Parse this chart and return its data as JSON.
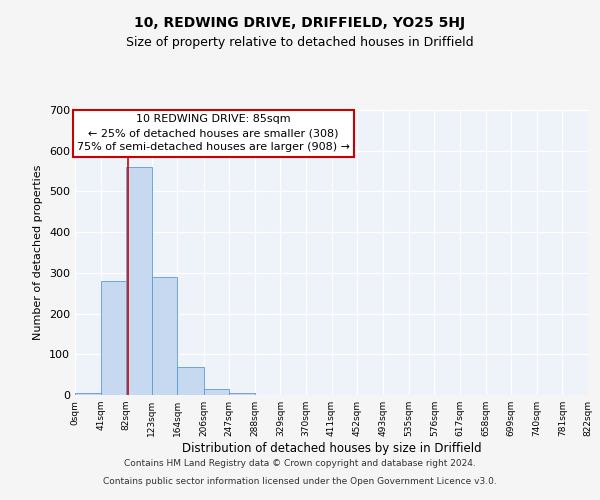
{
  "title": "10, REDWING DRIVE, DRIFFIELD, YO25 5HJ",
  "subtitle": "Size of property relative to detached houses in Driffield",
  "xlabel": "Distribution of detached houses by size in Driffield",
  "ylabel": "Number of detached properties",
  "bin_edges": [
    0,
    41,
    82,
    123,
    164,
    206,
    247,
    288,
    329,
    370,
    411,
    452,
    493,
    535,
    576,
    617,
    658,
    699,
    740,
    781,
    822
  ],
  "bin_counts": [
    5,
    280,
    560,
    290,
    68,
    15,
    5,
    0,
    0,
    0,
    0,
    0,
    0,
    0,
    0,
    0,
    0,
    0,
    0,
    0
  ],
  "bar_color": "#c6d9f0",
  "bar_edge_color": "#5b9bd5",
  "property_line_x": 85,
  "property_line_color": "#cc0000",
  "annotation_line1": "10 REDWING DRIVE: 85sqm",
  "annotation_line2": "← 25% of detached houses are smaller (308)",
  "annotation_line3": "75% of semi-detached houses are larger (908) →",
  "annotation_box_color": "#ffffff",
  "annotation_box_edge_color": "#cc0000",
  "ylim": [
    0,
    700
  ],
  "yticks": [
    0,
    100,
    200,
    300,
    400,
    500,
    600,
    700
  ],
  "tick_labels": [
    "0sqm",
    "41sqm",
    "82sqm",
    "123sqm",
    "164sqm",
    "206sqm",
    "247sqm",
    "288sqm",
    "329sqm",
    "370sqm",
    "411sqm",
    "452sqm",
    "493sqm",
    "535sqm",
    "576sqm",
    "617sqm",
    "658sqm",
    "699sqm",
    "740sqm",
    "781sqm",
    "822sqm"
  ],
  "background_color": "#eef2f9",
  "grid_color": "#ffffff",
  "footer_line1": "Contains HM Land Registry data © Crown copyright and database right 2024.",
  "footer_line2": "Contains public sector information licensed under the Open Government Licence v3.0.",
  "title_fontsize": 10,
  "subtitle_fontsize": 9,
  "annotation_fontsize": 8,
  "ylabel_fontsize": 8,
  "xlabel_fontsize": 8.5
}
